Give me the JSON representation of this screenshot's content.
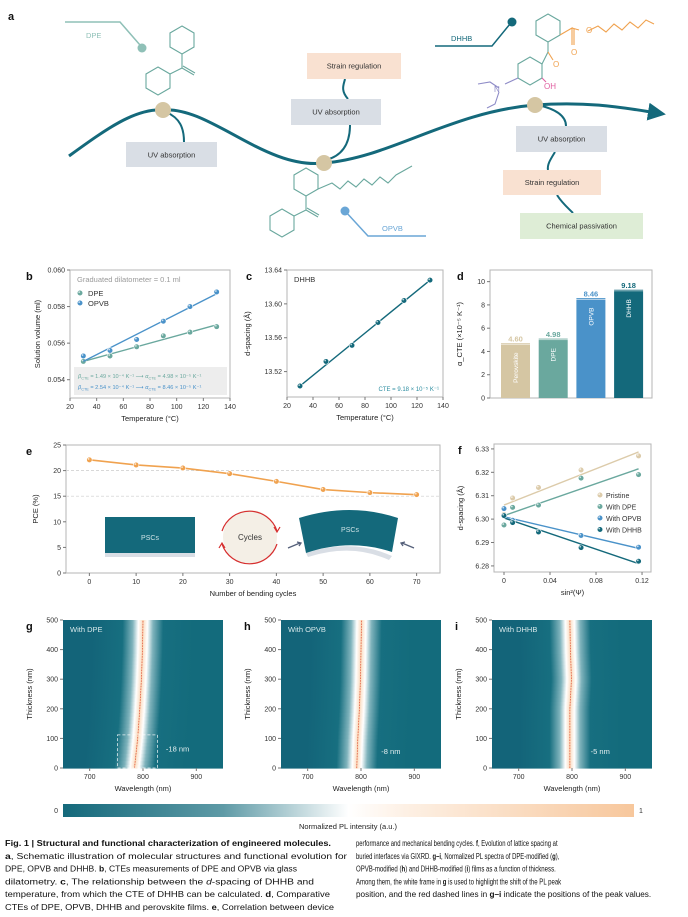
{
  "schematic": {
    "label": "a",
    "molecules": {
      "dpe": "DPE",
      "opvb": "OPVB",
      "dhhb": "DHHB"
    },
    "atoms": {
      "ester_o": "O",
      "ester_carbonyl_o": "O",
      "ketone_o": "O",
      "hydroxyl": "OH",
      "amine": "N"
    },
    "boxes": {
      "dpe_uv": "UV absorption",
      "opvb_strain": "Strain regulation",
      "opvb_uv": "UV absorption",
      "dhhb_uv": "UV absorption",
      "dhhb_strain": "Strain regulation",
      "dhhb_passivation": "Chemical passivation"
    }
  },
  "colors": {
    "dpe": "#6aa89e",
    "opvb": "#4a92c9",
    "dhhb": "#14697b",
    "perovskite": "#d5c6a3",
    "pristine": "#dccbaa",
    "pce_line": "#f0a24f",
    "curve": "#14697b",
    "node": "#d5c6a3",
    "uv_box": "#d9dee5",
    "strain_box": "#f9e1d1",
    "passivation_box": "#deedd6",
    "heat_low": "#14697b",
    "heat_high": "#f7c79c"
  },
  "chart_data": [
    {
      "panel": "b",
      "type": "scatter",
      "xlabel": "Temperature (°C)",
      "ylabel": "Solution volume (ml)",
      "xlim": [
        20,
        140
      ],
      "ylim": [
        0.053,
        0.06
      ],
      "xticks": [
        20,
        40,
        60,
        80,
        100,
        120,
        140
      ],
      "yticks": [
        0.054,
        0.056,
        0.058,
        0.06
      ],
      "annotation": "Graduated dilatometer = 0.1 ml",
      "legend_position": "top-left",
      "series": [
        {
          "name": "DPE",
          "color": "#6aa89e",
          "x": [
            30,
            50,
            70,
            90,
            110,
            130
          ],
          "y": [
            0.055,
            0.0553,
            0.0558,
            0.0564,
            0.0566,
            0.0569
          ],
          "fit": [
            [
              30,
              0.055
            ],
            [
              130,
              0.057
            ]
          ]
        },
        {
          "name": "OPVB",
          "color": "#4a92c9",
          "x": [
            30,
            50,
            70,
            90,
            110,
            130
          ],
          "y": [
            0.0553,
            0.0556,
            0.0562,
            0.0572,
            0.058,
            0.0588
          ],
          "fit": [
            [
              30,
              0.055
            ],
            [
              130,
              0.0587
            ]
          ]
        }
      ],
      "equations": [
        {
          "beta": "β",
          "beta_sub": "CTE",
          "beta_val": " = 1.49 × 10⁻⁴ K⁻¹",
          "alpha": "α",
          "alpha_sub": "CTE",
          "alpha_val": " = 4.98 × 10⁻⁵ K⁻¹",
          "color": "#6aa89e"
        },
        {
          "beta": "β",
          "beta_sub": "CTE",
          "beta_val": " = 2.54 × 10⁻⁴ K⁻¹",
          "alpha": "α",
          "alpha_sub": "CTE",
          "alpha_val": " = 8.46 × 10⁻⁵ K⁻¹",
          "color": "#4a92c9"
        }
      ]
    },
    {
      "panel": "c",
      "type": "scatter",
      "xlabel": "Temperature (°C)",
      "ylabel": "d-spacing (Å)",
      "xlim": [
        20,
        140
      ],
      "ylim": [
        13.49,
        13.64
      ],
      "xticks": [
        20,
        40,
        60,
        80,
        100,
        120,
        140
      ],
      "yticks": [
        13.52,
        13.56,
        13.6,
        13.64
      ],
      "annotation": "DHHB",
      "annotation2": "CTE = 9.18 × 10⁻⁵ K⁻¹",
      "series": [
        {
          "name": "DHHB",
          "color": "#14697b",
          "x": [
            30,
            50,
            70,
            90,
            110,
            130
          ],
          "y": [
            13.503,
            13.532,
            13.551,
            13.578,
            13.604,
            13.628
          ],
          "fit": [
            [
              30,
              13.503
            ],
            [
              130,
              13.628
            ]
          ]
        }
      ]
    },
    {
      "panel": "d",
      "type": "bar",
      "ylabel": "α_CTE (×10⁻⁵ K⁻¹)",
      "ylim": [
        0,
        11
      ],
      "yticks": [
        0,
        2,
        4,
        6,
        8,
        10
      ],
      "categories": [
        "Perovskite",
        "DPE",
        "OPVB",
        "DHHB"
      ],
      "values": [
        4.6,
        4.98,
        8.46,
        9.18
      ],
      "value_labels": [
        "4.60",
        "4.98",
        "8.46",
        "9.18"
      ],
      "bar_colors": [
        "#d5c6a3",
        "#6aa89e",
        "#4a92c9",
        "#14697b"
      ]
    },
    {
      "panel": "e",
      "type": "line",
      "xlabel": "Number of bending cycles",
      "ylabel": "PCE (%)",
      "xlim": [
        -5,
        75
      ],
      "ylim": [
        0,
        25
      ],
      "xticks": [
        0,
        10,
        20,
        30,
        40,
        50,
        60,
        70
      ],
      "yticks": [
        0,
        5,
        10,
        15,
        20,
        25
      ],
      "gridlines_y": [
        15,
        20
      ],
      "x": [
        0,
        10,
        20,
        30,
        40,
        50,
        60,
        70
      ],
      "y": [
        22.1,
        21.1,
        20.5,
        19.4,
        17.9,
        16.3,
        15.7,
        15.3
      ],
      "inset": {
        "flat_label": "PSCs",
        "cycle_label": "Cycles",
        "bent_label": "PSCs"
      }
    },
    {
      "panel": "f",
      "type": "scatter",
      "xlabel": "sin²(Ψ)",
      "ylabel": "d-spacing (Å)",
      "xlim": [
        -0.0087,
        0.1278
      ],
      "ylim": [
        6.2774,
        6.3321
      ],
      "xticks": [
        0,
        0.04,
        0.08,
        0.12
      ],
      "xtick_labels": [
        "0",
        "0.04",
        "0.08",
        "0.12"
      ],
      "yticks": [
        6.28,
        6.29,
        6.3,
        6.31,
        6.32,
        6.33
      ],
      "legend_position": "right",
      "series": [
        {
          "name": "Pristine",
          "color": "#dccbaa",
          "x": [
            0,
            0.0075,
            0.03,
            0.067,
            0.117
          ],
          "y": [
            6.302,
            6.309,
            6.3135,
            6.321,
            6.327
          ],
          "fit": [
            [
              0,
              6.306
            ],
            [
              0.117,
              6.3287
            ]
          ]
        },
        {
          "name": "With DPE",
          "color": "#6aa89e",
          "x": [
            0,
            0.0075,
            0.03,
            0.067,
            0.117
          ],
          "y": [
            6.2975,
            6.305,
            6.306,
            6.3175,
            6.319
          ],
          "fit": [
            [
              0,
              6.3015
            ],
            [
              0.117,
              6.3215
            ]
          ]
        },
        {
          "name": "With OPVB",
          "color": "#4a92c9",
          "x": [
            0,
            0.0075,
            0.03,
            0.067,
            0.117
          ],
          "y": [
            6.3045,
            6.2995,
            6.2945,
            6.293,
            6.288
          ],
          "fit": [
            [
              0,
              6.301
            ],
            [
              0.117,
              6.2875
            ]
          ]
        },
        {
          "name": "With DHHB",
          "color": "#14697b",
          "x": [
            0,
            0.0075,
            0.03,
            0.067,
            0.117
          ],
          "y": [
            6.3015,
            6.2985,
            6.2945,
            6.2878,
            6.282
          ],
          "fit": [
            [
              0,
              6.3005
            ],
            [
              0.117,
              6.281
            ]
          ]
        }
      ]
    },
    {
      "panel": "g",
      "type": "heatmap",
      "title": "With DPE",
      "xlabel": "Wavelength (nm)",
      "ylabel": "Thickness (nm)",
      "xlim": [
        650,
        950
      ],
      "ylim": [
        0,
        500
      ],
      "xticks": [
        700,
        800,
        900
      ],
      "yticks": [
        0,
        100,
        200,
        300,
        400,
        500
      ],
      "peak_thickness": [
        0,
        50,
        100,
        200,
        300,
        400,
        500
      ],
      "peak_wavelength": [
        784,
        787,
        790,
        794,
        797,
        799,
        800
      ],
      "shift_label": "-18 nm",
      "highlight_frame": {
        "wavelength": [
          752,
          827
        ],
        "thickness": [
          0,
          112
        ]
      }
    },
    {
      "panel": "h",
      "type": "heatmap",
      "title": "With OPVB",
      "xlabel": "Wavelength (nm)",
      "ylabel": "Thickness (nm)",
      "xlim": [
        650,
        950
      ],
      "ylim": [
        0,
        500
      ],
      "xticks": [
        700,
        800,
        900
      ],
      "yticks": [
        0,
        100,
        200,
        300,
        400,
        500
      ],
      "peak_thickness": [
        0,
        100,
        200,
        300,
        400,
        500
      ],
      "peak_wavelength": [
        792,
        794,
        797,
        799,
        800,
        801
      ],
      "shift_label": "-8 nm"
    },
    {
      "panel": "i",
      "type": "heatmap",
      "title": "With DHHB",
      "xlabel": "Wavelength (nm)",
      "ylabel": "Thickness (nm)",
      "xlim": [
        650,
        950
      ],
      "ylim": [
        0,
        500
      ],
      "xticks": [
        700,
        800,
        900
      ],
      "yticks": [
        0,
        100,
        200,
        300,
        400,
        500
      ],
      "peak_thickness": [
        0,
        100,
        200,
        300,
        400,
        500
      ],
      "peak_wavelength": [
        796,
        796,
        796,
        799,
        797,
        796
      ],
      "shift_label": "-5 nm"
    }
  ],
  "colorbar": {
    "min_label": "0",
    "max_label": "1",
    "label": "Normalized PL intensity (a.u.)"
  },
  "caption": {
    "left": [
      [
        [
          "b",
          "Fig. 1 | Structural and functional characterization of engineered molecules."
        ]
      ],
      [
        [
          "b",
          "a"
        ],
        [
          "n",
          ", Schematic illustration of molecular structures and functional evolution for"
        ]
      ],
      [
        [
          "n",
          "DPE, OPVB and DHHB. "
        ],
        [
          "b",
          "b"
        ],
        [
          "n",
          ", CTEs measurements of DPE and OPVB via glass"
        ]
      ],
      [
        [
          "n",
          "dilatometry. "
        ],
        [
          "b",
          "c"
        ],
        [
          "n",
          ", The relationship between the "
        ],
        [
          "i",
          "d"
        ],
        [
          "n",
          "-spacing of DHHB and"
        ]
      ],
      [
        [
          "n",
          "temperature, from which the CTE of DHHB can be calculated. "
        ],
        [
          "b",
          "d"
        ],
        [
          "n",
          ", Comparative"
        ]
      ],
      [
        [
          "n",
          "CTEs of DPE, OPVB, DHHB and perovskite films. "
        ],
        [
          "b",
          "e"
        ],
        [
          "n",
          ", Correlation between device"
        ]
      ]
    ],
    "right": [
      [
        [
          "n",
          "performance and mechanical bending cycles. "
        ],
        [
          "b",
          "f"
        ],
        [
          "n",
          ", Evolution of lattice spacing at"
        ]
      ],
      [
        [
          "n",
          "buried interfaces via GIXRD. "
        ],
        [
          "b",
          "g–i"
        ],
        [
          "n",
          ", Normalized PL spectra of DPE-modified ("
        ],
        [
          "b",
          "g"
        ],
        [
          "n",
          "),"
        ]
      ],
      [
        [
          "n",
          "OPVB-modified ("
        ],
        [
          "b",
          "h"
        ],
        [
          "n",
          ") and DHHB-modified ("
        ],
        [
          "b",
          "i"
        ],
        [
          "n",
          ") films as a function of thickness."
        ]
      ],
      [
        [
          "n",
          "Among them, the white frame in "
        ],
        [
          "b",
          "g"
        ],
        [
          "n",
          " is used to highlight the shift of the PL peak"
        ]
      ],
      [
        [
          "n",
          "position, and the red dashed lines in "
        ],
        [
          "b",
          "g–i"
        ],
        [
          "n",
          " indicate the positions of the peak values."
        ]
      ]
    ]
  }
}
